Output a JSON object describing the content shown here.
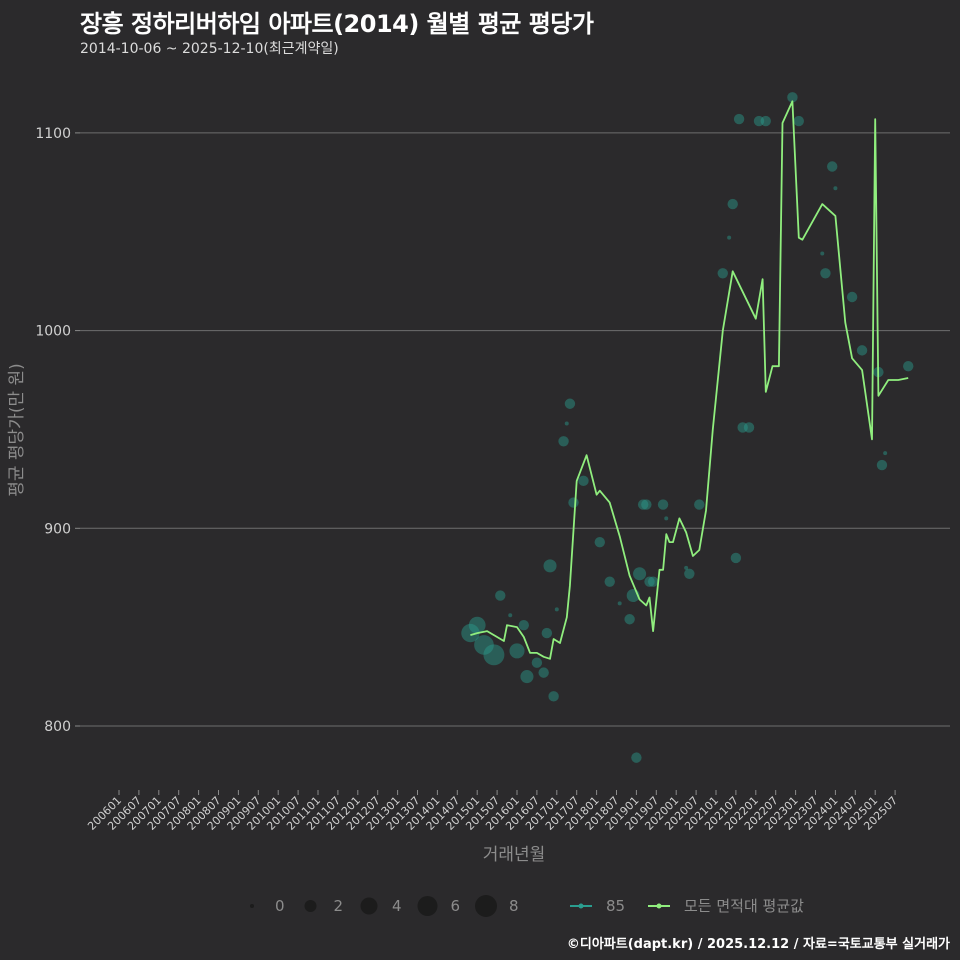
{
  "header": {
    "title": "장흥 정하리버하임 아파트(2014) 월별 평균 평당가",
    "subtitle": "2014-10-06 ~ 2025-12-10(최근계약일)"
  },
  "caption": "©디아파트(dapt.kr) / 2025.12.12 / 자료=국토교통부 실거래가",
  "colors": {
    "background": "#2b2a2c",
    "grid": "#6e6e6e",
    "line_all": "#90ee7e",
    "points_85": "#2a9d8f",
    "line_85": "#2a9d8f"
  },
  "legend": {
    "size_title": "",
    "sizes": [
      {
        "label": "0",
        "r": 2
      },
      {
        "label": "2",
        "r": 6
      },
      {
        "label": "4",
        "r": 8.5
      },
      {
        "label": "6",
        "r": 10
      },
      {
        "label": "8",
        "r": 11
      }
    ],
    "series": [
      {
        "label": "85",
        "color": "#2a9d8f"
      },
      {
        "label": "모든 면적대 평균값",
        "color": "#90ee7e"
      }
    ]
  },
  "chart_data": {
    "type": "line",
    "title": "장흥 정하리버하임 아파트(2014) 월별 평균 평당가",
    "subtitle": "2014-10-06 ~ 2025-12-10(최근계약일)",
    "xlabel": "거래년월",
    "ylabel": "평균 평당가(만 원)",
    "ylim": [
      770,
      1125
    ],
    "yticks": [
      800,
      900,
      1000,
      1100
    ],
    "xticks": [
      "200601",
      "200607",
      "200701",
      "200707",
      "200801",
      "200807",
      "200901",
      "200907",
      "201001",
      "201007",
      "201101",
      "201107",
      "201201",
      "201207",
      "201301",
      "201307",
      "201401",
      "201407",
      "201501",
      "201507",
      "201601",
      "201607",
      "201701",
      "201707",
      "201801",
      "201807",
      "201901",
      "201907",
      "202001",
      "202007",
      "202101",
      "202107",
      "202201",
      "202207",
      "202301",
      "202307",
      "202401",
      "202407",
      "202501",
      "202507"
    ],
    "grid": true,
    "legend_position": "bottom",
    "series": [
      {
        "name": "모든 면적대 평균값",
        "type": "line",
        "x": [
          2014.83,
          2015.0,
          2015.25,
          2015.5,
          2015.67,
          2015.75,
          2016.0,
          2016.17,
          2016.33,
          2016.5,
          2016.67,
          2016.83,
          2016.92,
          2017.08,
          2017.25,
          2017.33,
          2017.5,
          2017.75,
          2018.0,
          2018.08,
          2018.33,
          2018.58,
          2018.83,
          2019.08,
          2019.25,
          2019.33,
          2019.42,
          2019.58,
          2019.67,
          2019.75,
          2019.83,
          2019.92,
          2020.08,
          2020.25,
          2020.42,
          2020.58,
          2020.75,
          2020.92,
          2021.17,
          2021.42,
          2022.0,
          2022.17,
          2022.25,
          2022.42,
          2022.58,
          2022.67,
          2022.92,
          2025.0,
          2023.08,
          2023.17,
          2023.67,
          2024.0,
          2024.25,
          2024.42,
          2024.67,
          2024.92,
          2025.08,
          2025.33,
          2025.58,
          2025.83
        ],
        "values": [
          846,
          847,
          848,
          845,
          843,
          851,
          850,
          845,
          837,
          837,
          835,
          834,
          844,
          842,
          855,
          871,
          924,
          937,
          917,
          919,
          913,
          896,
          876,
          864,
          861,
          865,
          848,
          879,
          879,
          897,
          893,
          893,
          905,
          898,
          886,
          889,
          909,
          950,
          1000,
          1030,
          1006,
          1026,
          969,
          982,
          982,
          1105,
          1116,
          1107,
          1047,
          1046,
          1064,
          1058,
          1004,
          986,
          980,
          945,
          967,
          975,
          975,
          976
        ]
      },
      {
        "name": "85",
        "type": "scatter",
        "note": "bubble size = transaction count (0-8)",
        "points": [
          {
            "x": 2014.83,
            "y": 847,
            "n": 5
          },
          {
            "x": 2015.0,
            "y": 851,
            "n": 4
          },
          {
            "x": 2015.17,
            "y": 841,
            "n": 6
          },
          {
            "x": 2015.42,
            "y": 836,
            "n": 7
          },
          {
            "x": 2015.58,
            "y": 866,
            "n": 1
          },
          {
            "x": 2015.83,
            "y": 856,
            "n": 0
          },
          {
            "x": 2016.0,
            "y": 838,
            "n": 3
          },
          {
            "x": 2016.17,
            "y": 851,
            "n": 1
          },
          {
            "x": 2016.25,
            "y": 825,
            "n": 2
          },
          {
            "x": 2016.5,
            "y": 832,
            "n": 1
          },
          {
            "x": 2016.67,
            "y": 827,
            "n": 1
          },
          {
            "x": 2016.75,
            "y": 847,
            "n": 1
          },
          {
            "x": 2016.83,
            "y": 881,
            "n": 2
          },
          {
            "x": 2016.92,
            "y": 815,
            "n": 1
          },
          {
            "x": 2017.0,
            "y": 859,
            "n": 0
          },
          {
            "x": 2017.17,
            "y": 944,
            "n": 1
          },
          {
            "x": 2017.25,
            "y": 953,
            "n": 0
          },
          {
            "x": 2017.33,
            "y": 963,
            "n": 1
          },
          {
            "x": 2017.42,
            "y": 913,
            "n": 1
          },
          {
            "x": 2017.67,
            "y": 924,
            "n": 1
          },
          {
            "x": 2018.08,
            "y": 893,
            "n": 1
          },
          {
            "x": 2018.33,
            "y": 873,
            "n": 1
          },
          {
            "x": 2018.58,
            "y": 862,
            "n": 0
          },
          {
            "x": 2018.83,
            "y": 854,
            "n": 1
          },
          {
            "x": 2018.92,
            "y": 866,
            "n": 2
          },
          {
            "x": 2019.0,
            "y": 784,
            "n": 1
          },
          {
            "x": 2019.08,
            "y": 877,
            "n": 2
          },
          {
            "x": 2019.17,
            "y": 912,
            "n": 1
          },
          {
            "x": 2019.25,
            "y": 912,
            "n": 1
          },
          {
            "x": 2019.33,
            "y": 873,
            "n": 1
          },
          {
            "x": 2019.42,
            "y": 873,
            "n": 1
          },
          {
            "x": 2019.67,
            "y": 912,
            "n": 1
          },
          {
            "x": 2019.75,
            "y": 905,
            "n": 0
          },
          {
            "x": 2020.25,
            "y": 880,
            "n": 0
          },
          {
            "x": 2020.33,
            "y": 877,
            "n": 1
          },
          {
            "x": 2020.58,
            "y": 912,
            "n": 1
          },
          {
            "x": 2021.17,
            "y": 1029,
            "n": 1
          },
          {
            "x": 2021.33,
            "y": 1047,
            "n": 0
          },
          {
            "x": 2021.42,
            "y": 1064,
            "n": 1
          },
          {
            "x": 2021.5,
            "y": 885,
            "n": 1
          },
          {
            "x": 2021.58,
            "y": 1107,
            "n": 1
          },
          {
            "x": 2021.67,
            "y": 951,
            "n": 1
          },
          {
            "x": 2021.83,
            "y": 951,
            "n": 1
          },
          {
            "x": 2022.08,
            "y": 1106,
            "n": 1
          },
          {
            "x": 2022.25,
            "y": 1106,
            "n": 1
          },
          {
            "x": 2022.92,
            "y": 1118,
            "n": 1
          },
          {
            "x": 2023.08,
            "y": 1106,
            "n": 1
          },
          {
            "x": 2023.67,
            "y": 1039,
            "n": 0
          },
          {
            "x": 2023.75,
            "y": 1029,
            "n": 1
          },
          {
            "x": 2023.92,
            "y": 1083,
            "n": 1
          },
          {
            "x": 2024.0,
            "y": 1072,
            "n": 0
          },
          {
            "x": 2024.42,
            "y": 1017,
            "n": 1
          },
          {
            "x": 2024.67,
            "y": 990,
            "n": 1
          },
          {
            "x": 2025.08,
            "y": 979,
            "n": 1
          },
          {
            "x": 2025.17,
            "y": 932,
            "n": 1
          },
          {
            "x": 2025.25,
            "y": 938,
            "n": 0
          },
          {
            "x": 2025.83,
            "y": 982,
            "n": 1
          }
        ]
      }
    ]
  },
  "axes": {
    "xlabel": "거래년월",
    "ylabel": "평균 평당가(만 원)"
  }
}
